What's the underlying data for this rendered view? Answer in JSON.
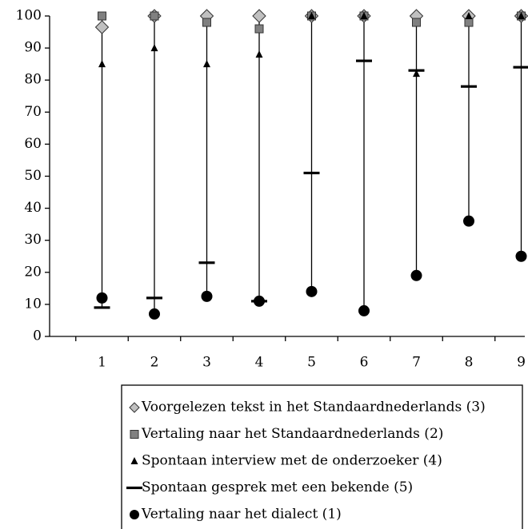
{
  "chart_data": {
    "type": "hilo",
    "categories": [
      "1",
      "2",
      "3",
      "4",
      "5",
      "6",
      "7",
      "8",
      "9"
    ],
    "ylim": [
      0,
      100
    ],
    "yticks": [
      0,
      10,
      20,
      30,
      40,
      50,
      60,
      70,
      80,
      90,
      100
    ],
    "series": [
      {
        "name": "Voorgelezen tekst in het Standaardnederlands (3)",
        "marker": "diamond",
        "color": "#c0c0c0",
        "values": [
          96.5,
          100,
          100,
          100,
          100,
          100,
          100,
          100,
          100
        ]
      },
      {
        "name": "Vertaling naar het Standaardnederlands (2)",
        "marker": "square",
        "color": "#808080",
        "values": [
          100,
          100,
          98,
          96,
          100,
          100,
          98,
          98,
          100
        ]
      },
      {
        "name": "Spontaan interview met de onderzoeker (4)",
        "marker": "triangle",
        "color": "#000000",
        "values": [
          85,
          90,
          85,
          88,
          100,
          100,
          82,
          100,
          100
        ]
      },
      {
        "name": "Spontaan gesprek met een bekende (5)",
        "marker": "dash",
        "color": "#000000",
        "values": [
          9,
          12,
          23,
          11,
          51,
          86,
          83,
          78,
          84
        ]
      },
      {
        "name": "Vertaling naar het dialect (1)",
        "marker": "circle",
        "color": "#000000",
        "values": [
          12,
          7,
          12.5,
          11,
          14,
          8,
          19,
          36,
          25
        ]
      }
    ]
  }
}
